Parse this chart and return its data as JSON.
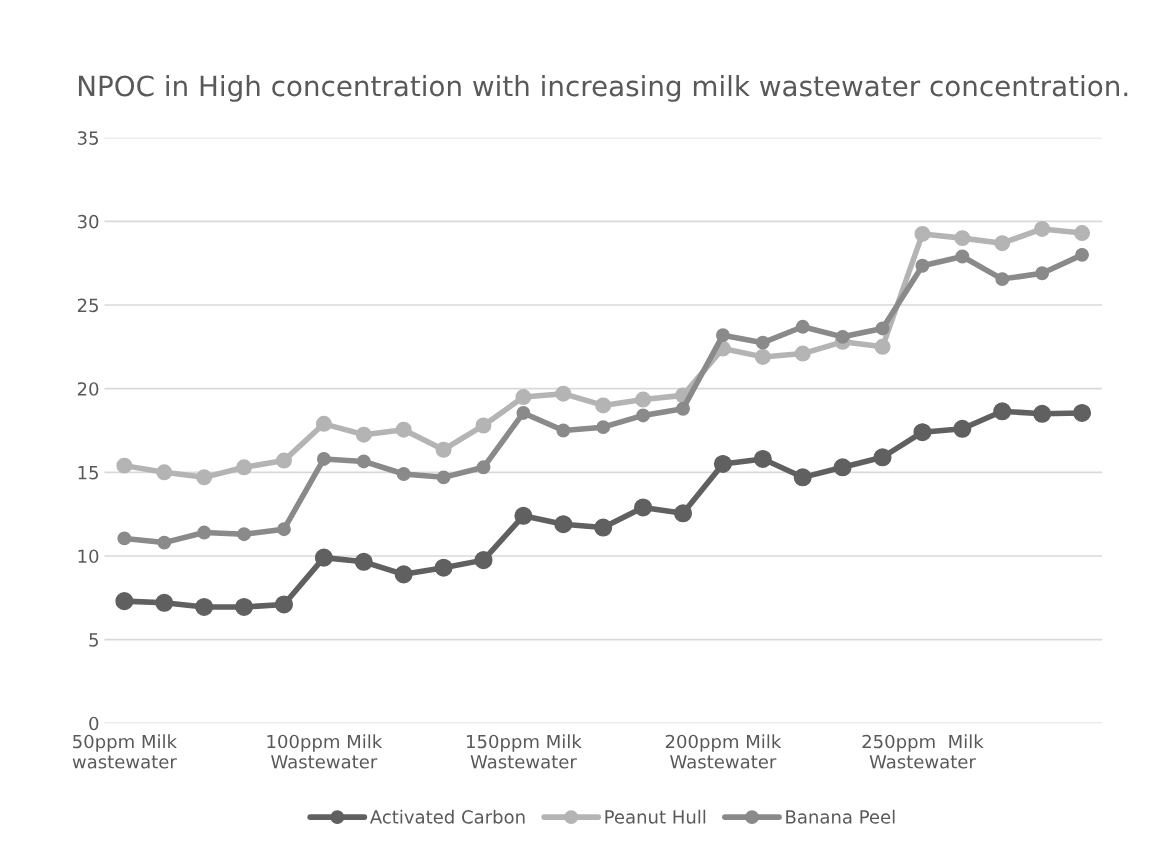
{
  "chart_data": {
    "type": "line",
    "title": "NPOC in High concentration with increasing milk wastewater concentration.",
    "categories": [
      "50ppm Milk\nwastewater",
      null,
      null,
      null,
      null,
      "100ppm Milk\nWastewater",
      null,
      null,
      null,
      null,
      "150ppm Milk\nWastewater",
      null,
      null,
      null,
      null,
      "200ppm Milk\nWastewater",
      null,
      null,
      null,
      null,
      "250ppm  Milk\nWastewater",
      null,
      null,
      null,
      null
    ],
    "series": [
      {
        "name": "Activated Carbon",
        "color": "#606060",
        "values": [
          7.3,
          7.2,
          6.95,
          6.95,
          7.1,
          9.9,
          9.65,
          8.9,
          9.3,
          9.75,
          12.4,
          11.9,
          11.7,
          12.9,
          12.55,
          15.5,
          15.8,
          14.7,
          15.3,
          15.9,
          17.4,
          17.6,
          18.65,
          18.5,
          18.55
        ]
      },
      {
        "name": "Peanut Hull",
        "color": "#b4b4b4",
        "values": [
          15.4,
          15.0,
          14.7,
          15.3,
          15.7,
          17.9,
          17.25,
          17.55,
          16.35,
          17.8,
          19.5,
          19.7,
          19.0,
          19.35,
          19.6,
          22.4,
          21.9,
          22.1,
          22.8,
          22.5,
          29.25,
          29.0,
          28.7,
          29.55,
          29.3
        ]
      },
      {
        "name": "Banana Peel",
        "color": "#8a8a8a",
        "values": [
          11.05,
          10.8,
          11.4,
          11.3,
          11.6,
          15.8,
          15.65,
          14.9,
          14.7,
          15.3,
          18.55,
          17.5,
          17.7,
          18.4,
          18.8,
          23.2,
          22.75,
          23.7,
          23.1,
          23.6,
          27.35,
          27.9,
          26.55,
          26.9,
          28.0
        ]
      }
    ],
    "ylim": [
      0,
      35
    ],
    "yticks": [
      0,
      5,
      10,
      15,
      20,
      25,
      30,
      35
    ],
    "grid": "y",
    "legend": "bottom",
    "marker": "circle",
    "line_style": "solid"
  }
}
